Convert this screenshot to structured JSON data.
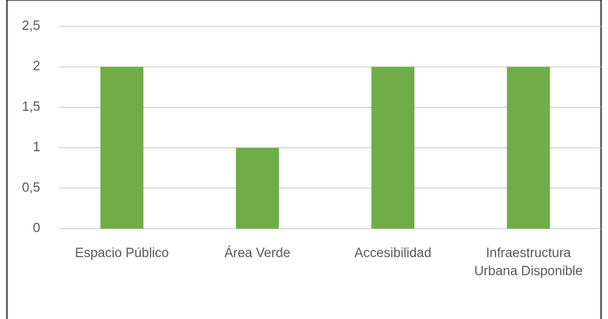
{
  "chart_data": {
    "type": "bar",
    "categories": [
      "Espacio Público",
      "Área Verde",
      "Accesibilidad",
      "Infraestructura Urbana Disponible"
    ],
    "values": [
      2,
      1,
      2,
      2
    ],
    "color": "#70ad47",
    "ylim": [
      0,
      2.5
    ],
    "yticks": [
      0,
      {
        "value": 0.5,
        "label": "0,5"
      },
      1,
      {
        "value": 1.5,
        "label": "1,5"
      },
      2,
      {
        "value": 2.5,
        "label": "2,5"
      }
    ],
    "grid": true
  }
}
